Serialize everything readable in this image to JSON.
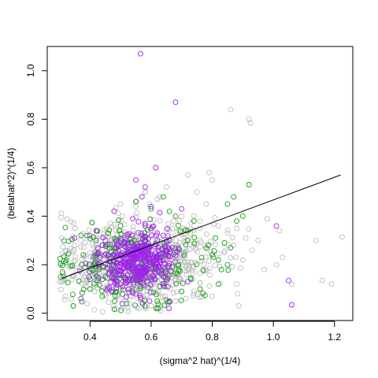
{
  "chart_data": {
    "type": "scatter",
    "title": "",
    "xlabel": "(sigma^2 hat)^(1/4)",
    "ylabel": "(betahat^2)^(1/4)",
    "xlim": [
      0.26,
      1.26
    ],
    "ylim": [
      -0.03,
      1.1
    ],
    "x_ticks": [
      0.4,
      0.6,
      0.8,
      1.0,
      1.2
    ],
    "x_tick_labels": [
      "0.4",
      "0.6",
      "0.8",
      "1.0",
      "1.2"
    ],
    "y_ticks": [
      0.0,
      0.2,
      0.4,
      0.6,
      0.8,
      1.0
    ],
    "y_tick_labels": [
      "0.0",
      "0.2",
      "0.4",
      "0.6",
      "0.8",
      "1.0"
    ],
    "grid": false,
    "legend": "none",
    "marker": "open-circle",
    "colors": {
      "gray": "#bebebe",
      "green": "#1a9c1a",
      "purple": "#a020f0",
      "line": "#000000"
    },
    "fit_line": {
      "x": [
        0.31,
        1.22
      ],
      "y": [
        0.145,
        0.57
      ]
    },
    "series": [
      {
        "color": "#bebebe",
        "points": [
          [
            0.86,
            0.84
          ],
          [
            0.92,
            0.8
          ],
          [
            0.925,
            0.785
          ],
          [
            0.79,
            0.58
          ],
          [
            0.72,
            0.57
          ],
          [
            0.8,
            0.55
          ],
          [
            1.225,
            0.315
          ],
          [
            1.14,
            0.3
          ],
          [
            1.16,
            0.135
          ],
          [
            1.19,
            0.12
          ],
          [
            1.06,
            0.12
          ],
          [
            1.02,
            0.34
          ],
          [
            0.98,
            0.39
          ],
          [
            0.95,
            0.3
          ],
          [
            0.9,
            0.22
          ],
          [
            0.93,
            0.26
          ],
          [
            0.88,
            0.35
          ],
          [
            0.97,
            0.18
          ],
          [
            1.01,
            0.2
          ],
          [
            1.03,
            0.23
          ],
          [
            0.62,
            0.47
          ],
          [
            0.5,
            0.45
          ],
          [
            0.55,
            0.44
          ],
          [
            0.7,
            0.4
          ],
          [
            0.76,
            0.38
          ],
          [
            0.82,
            0.36
          ],
          [
            0.85,
            0.33
          ],
          [
            0.87,
            0.28
          ],
          [
            0.84,
            0.25
          ],
          [
            0.91,
            0.31
          ],
          [
            0.74,
            0.08
          ],
          [
            0.8,
            0.07
          ],
          [
            0.68,
            0.05
          ],
          [
            0.6,
            0.03
          ],
          [
            0.56,
            0.02
          ],
          [
            0.88,
            0.12
          ],
          [
            0.65,
            0.52
          ],
          [
            0.58,
            0.5
          ],
          [
            0.75,
            0.5
          ],
          [
            0.78,
            0.45
          ],
          [
            0.35,
            0.28
          ],
          [
            0.37,
            0.3
          ]
        ]
      },
      {
        "color": "#1a9c1a",
        "points": [
          [
            0.92,
            0.53
          ],
          [
            0.32,
            0.21
          ],
          [
            0.345,
            0.03
          ],
          [
            0.31,
            0.17
          ],
          [
            0.87,
            0.48
          ],
          [
            0.85,
            0.45
          ],
          [
            0.9,
            0.4
          ],
          [
            0.88,
            0.38
          ],
          [
            0.81,
            0.31
          ],
          [
            0.84,
            0.29
          ],
          [
            0.86,
            0.27
          ],
          [
            0.78,
            0.27
          ],
          [
            0.8,
            0.24
          ],
          [
            0.82,
            0.22
          ],
          [
            0.85,
            0.2
          ],
          [
            0.83,
            0.18
          ],
          [
            0.82,
            0.12
          ],
          [
            0.72,
            0.34
          ],
          [
            0.64,
            0.48
          ],
          [
            0.55,
            0.46
          ],
          [
            0.6,
            0.43
          ],
          [
            0.66,
            0.42
          ],
          [
            0.68,
            0.4
          ],
          [
            0.74,
            0.38
          ],
          [
            0.39,
            0.32
          ],
          [
            0.42,
            0.3
          ],
          [
            0.46,
            0.33
          ],
          [
            0.5,
            0.36
          ],
          [
            0.43,
            0.18
          ],
          [
            0.45,
            0.15
          ],
          [
            0.4,
            0.1
          ],
          [
            0.44,
            0.07
          ],
          [
            0.48,
            0.05
          ],
          [
            0.52,
            0.04
          ],
          [
            0.58,
            0.03
          ],
          [
            0.62,
            0.05
          ],
          [
            0.7,
            0.09
          ],
          [
            0.76,
            0.1
          ],
          [
            0.73,
            0.14
          ],
          [
            0.69,
            0.2
          ]
        ]
      },
      {
        "color": "#a020f0",
        "points": [
          [
            0.565,
            1.07
          ],
          [
            0.68,
            0.87
          ],
          [
            0.615,
            0.6
          ],
          [
            0.42,
            0.34
          ],
          [
            0.45,
            0.3
          ],
          [
            0.35,
            0.31
          ],
          [
            1.06,
            0.035
          ],
          [
            1.05,
            0.135
          ],
          [
            1.01,
            0.36
          ],
          [
            0.7,
            0.43
          ],
          [
            0.55,
            0.55
          ],
          [
            0.58,
            0.52
          ],
          [
            0.57,
            0.48
          ],
          [
            0.6,
            0.44
          ],
          [
            0.58,
            0.36
          ],
          [
            0.64,
            0.15
          ],
          [
            0.72,
            0.13
          ],
          [
            0.66,
            0.05
          ],
          [
            0.47,
            0.09
          ],
          [
            0.4,
            0.14
          ],
          [
            0.37,
            0.06
          ],
          [
            0.5,
            0.12
          ],
          [
            0.62,
            0.33
          ],
          [
            0.66,
            0.3
          ],
          [
            0.54,
            0.39
          ]
        ]
      }
    ],
    "clusters": [
      {
        "color": "#bebebe",
        "count": 650,
        "x_mean": 0.56,
        "x_sd": 0.12,
        "y_mean": 0.21,
        "y_sd": 0.09
      },
      {
        "color": "#1a9c1a",
        "count": 220,
        "x_mean": 0.52,
        "x_sd": 0.12,
        "y_mean": 0.2,
        "y_sd": 0.08
      },
      {
        "color": "#a020f0",
        "count": 380,
        "x_mean": 0.555,
        "x_sd": 0.06,
        "y_mean": 0.22,
        "y_sd": 0.06
      }
    ]
  }
}
